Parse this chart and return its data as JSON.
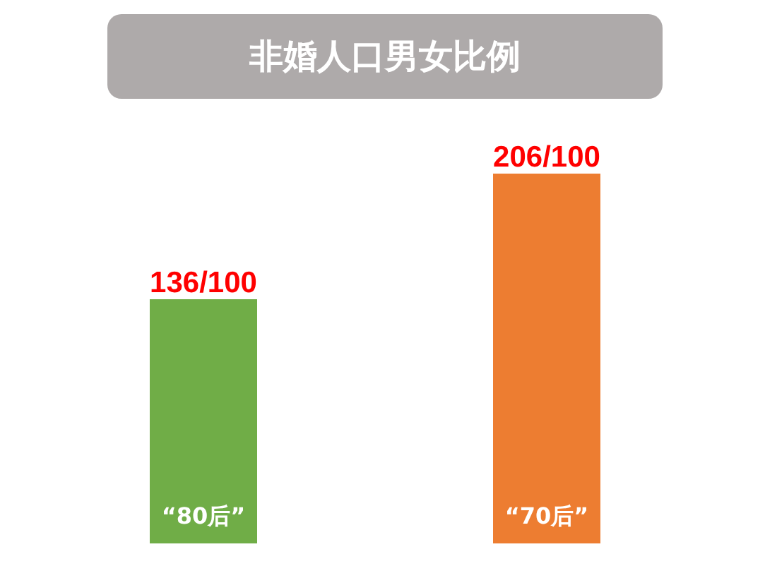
{
  "chart_data": {
    "type": "bar",
    "title": "非婚人口男女比例",
    "categories": [
      "“80后”",
      "“70后”"
    ],
    "values": [
      136,
      206
    ],
    "colors": [
      "#70ad47",
      "#ed7d31"
    ],
    "value_labels": [
      "136/100",
      "206/100"
    ]
  }
}
